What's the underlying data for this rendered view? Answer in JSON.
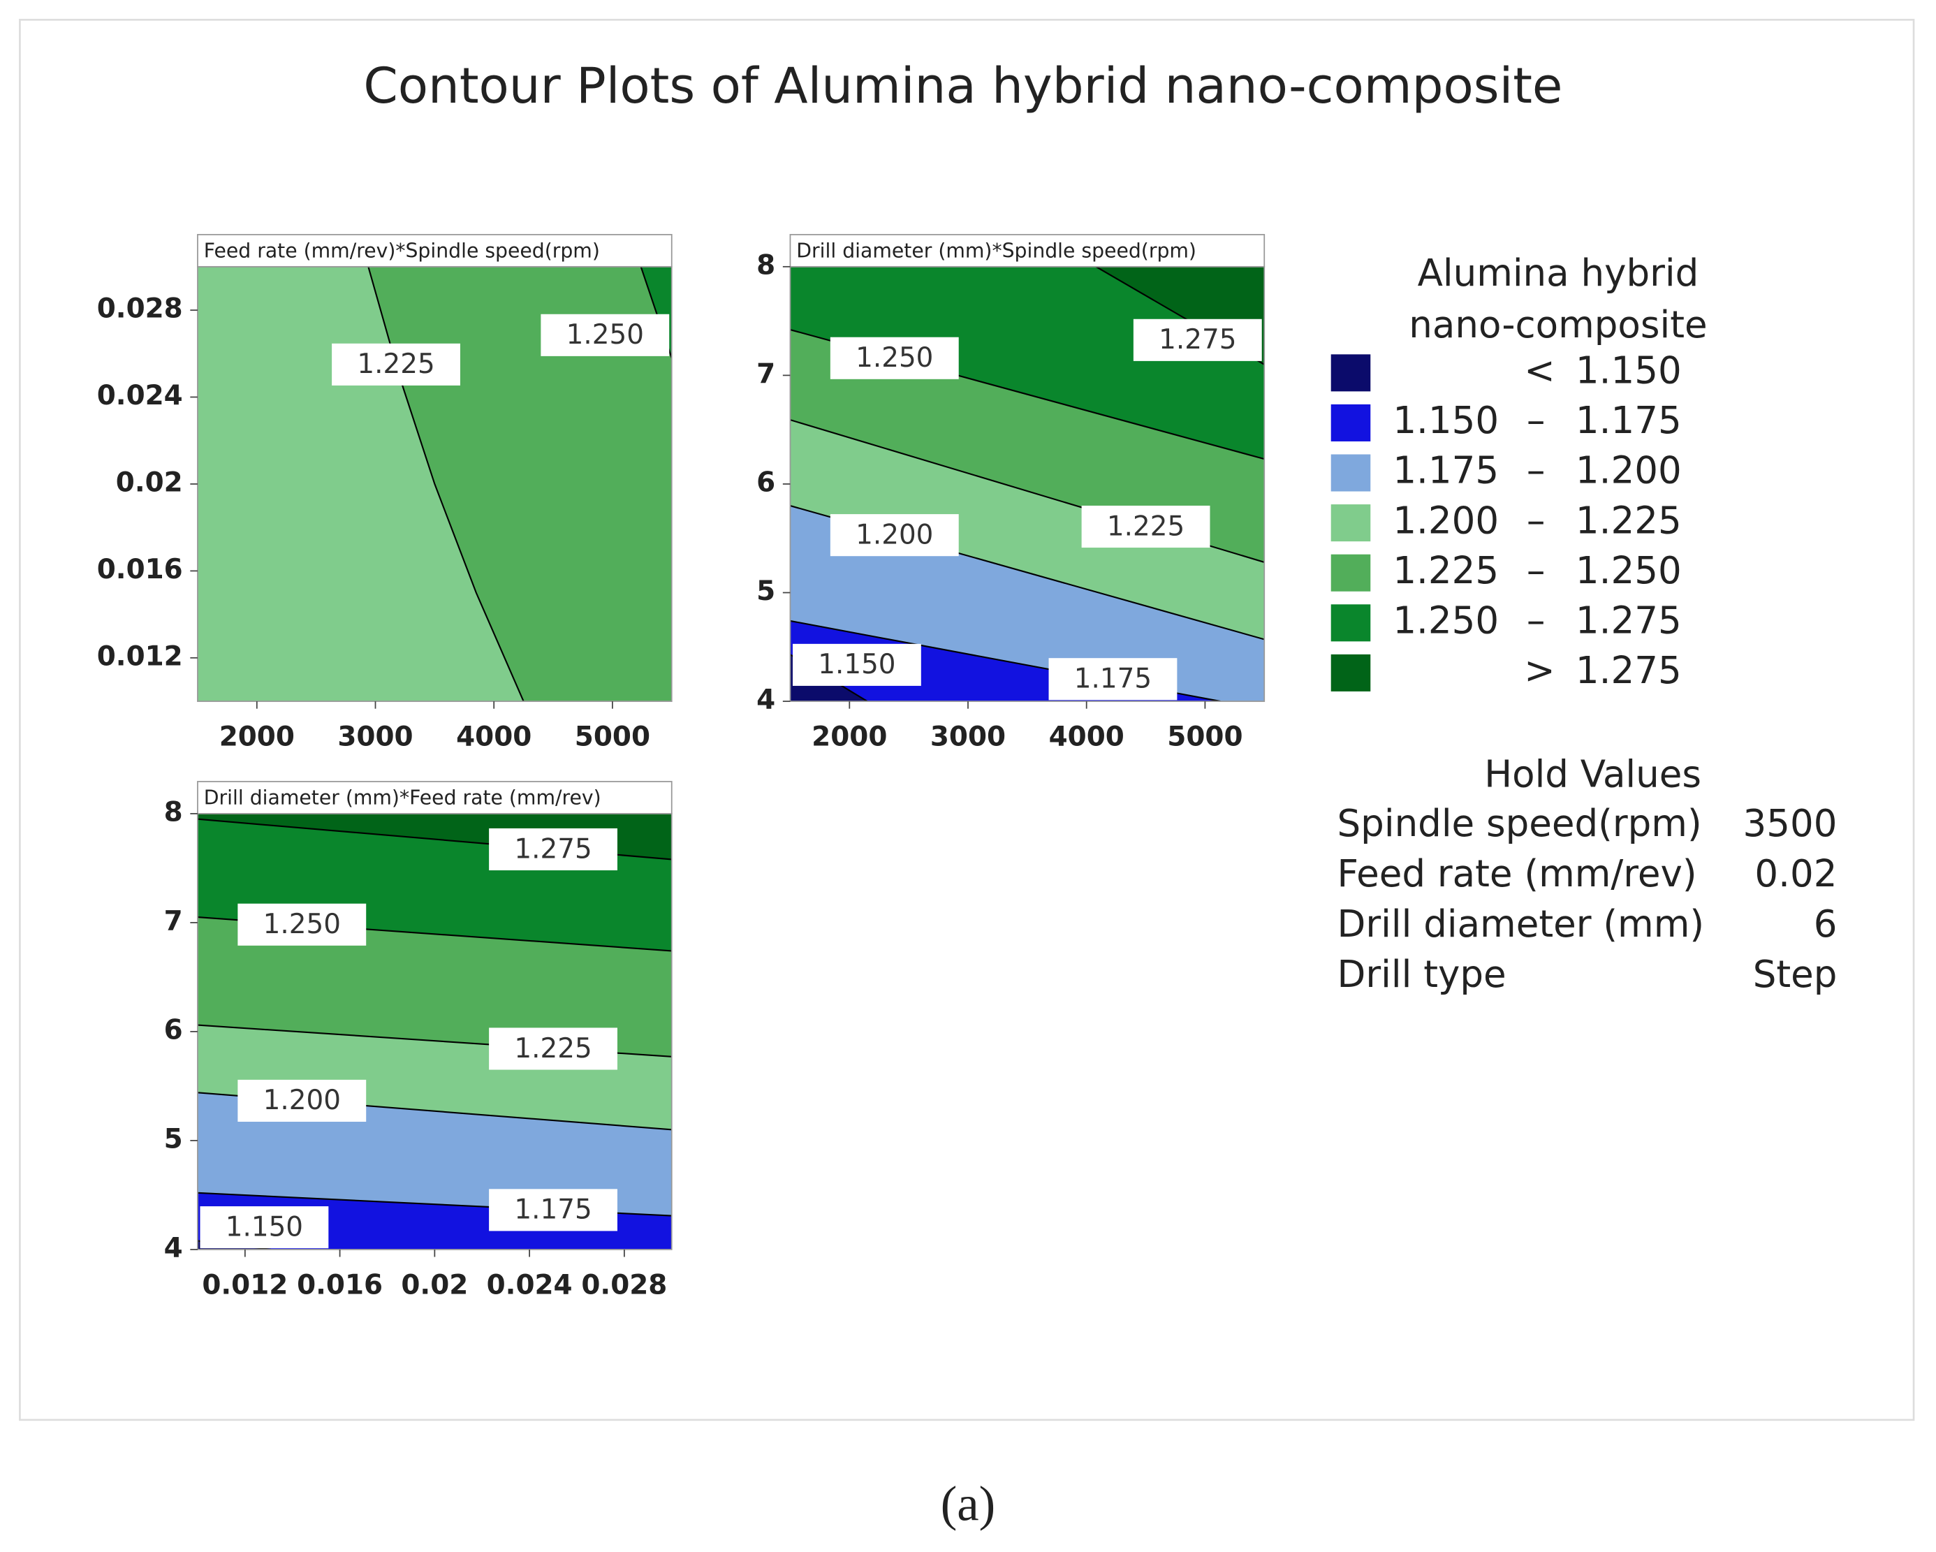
{
  "title": "Contour Plots of Alumina hybrid nano-composite",
  "caption": "(a)",
  "legend": {
    "title": [
      "Alumina hybrid",
      "nano-composite"
    ],
    "lt": "<",
    "gt": ">",
    "dash": "–",
    "bands": [
      {
        "color": "#0b0b6b",
        "min": null,
        "max": {
          "value": 1.15,
          "label": "1.150"
        }
      },
      {
        "color": "#1212e0",
        "min": {
          "value": 1.15,
          "label": "1.150"
        },
        "max": {
          "value": 1.175,
          "label": "1.175"
        }
      },
      {
        "color": "#7fa8dd",
        "min": {
          "value": 1.175,
          "label": "1.175"
        },
        "max": {
          "value": 1.2,
          "label": "1.200"
        }
      },
      {
        "color": "#80cc8c",
        "min": {
          "value": 1.2,
          "label": "1.200"
        },
        "max": {
          "value": 1.225,
          "label": "1.225"
        }
      },
      {
        "color": "#52ae5a",
        "min": {
          "value": 1.225,
          "label": "1.225"
        },
        "max": {
          "value": 1.25,
          "label": "1.250"
        }
      },
      {
        "color": "#0a862c",
        "min": {
          "value": 1.25,
          "label": "1.250"
        },
        "max": {
          "value": 1.275,
          "label": "1.275"
        }
      },
      {
        "color": "#016418",
        "min": {
          "value": 1.275,
          "label": "1.275"
        },
        "max": null
      }
    ]
  },
  "hold_values": {
    "title": "Hold Values",
    "rows": [
      [
        "Spindle speed(rpm)",
        3500
      ],
      [
        "Feed rate (mm/rev)",
        0.02
      ],
      [
        "Drill diameter (mm)",
        6
      ],
      [
        "Drill type",
        "Step"
      ]
    ]
  },
  "chart_data": [
    {
      "type": "contour",
      "title": "Feed rate (mm/rev)*Spindle speed(rpm)",
      "xlim": [
        1500,
        5500
      ],
      "ylim": [
        0.01,
        0.03
      ],
      "xticks": [
        2000,
        3000,
        4000,
        5000
      ],
      "yticks": [
        0.012,
        0.016,
        0.02,
        0.024,
        0.028
      ],
      "contours": [
        {
          "level": {
            "value": 1.225,
            "label": "1.225"
          },
          "x": [
            2940,
            3200,
            3500,
            3850,
            4250
          ],
          "y": [
            0.03,
            0.025,
            0.02,
            0.015,
            0.01
          ]
        },
        {
          "level": {
            "value": 1.25,
            "label": "1.250"
          },
          "x": [
            5240,
            5500
          ],
          "y": [
            0.03,
            0.0258
          ]
        }
      ]
    },
    {
      "type": "contour",
      "title": "Drill diameter (mm)*Spindle speed(rpm)",
      "xlim": [
        1500,
        5500
      ],
      "ylim": [
        4,
        8
      ],
      "xticks": [
        2000,
        3000,
        4000,
        5000
      ],
      "yticks": [
        4,
        5,
        6,
        7,
        8
      ],
      "contours": [
        {
          "level": {
            "value": 1.15,
            "label": "1.150"
          },
          "x": [
            1500,
            2150
          ],
          "y": [
            4.43,
            4
          ]
        },
        {
          "level": {
            "value": 1.175,
            "label": "1.175"
          },
          "x": [
            1500,
            5130
          ],
          "y": [
            4.74,
            4
          ]
        },
        {
          "level": {
            "value": 1.2,
            "label": "1.200"
          },
          "x": [
            1500,
            5500
          ],
          "y": [
            5.8,
            4.57
          ]
        },
        {
          "level": {
            "value": 1.225,
            "label": "1.225"
          },
          "x": [
            1500,
            5500
          ],
          "y": [
            6.59,
            5.28
          ]
        },
        {
          "level": {
            "value": 1.25,
            "label": "1.250"
          },
          "x": [
            1500,
            5500
          ],
          "y": [
            7.42,
            6.23
          ]
        },
        {
          "level": {
            "value": 1.275,
            "label": "1.275"
          },
          "x": [
            4080,
            5500
          ],
          "y": [
            8,
            7.1
          ]
        }
      ]
    },
    {
      "type": "contour",
      "title": "Drill diameter (mm)*Feed rate (mm/rev)",
      "xlim": [
        0.01,
        0.03
      ],
      "ylim": [
        4,
        8
      ],
      "xticks": [
        0.012,
        0.016,
        0.02,
        0.024,
        0.028
      ],
      "yticks": [
        4,
        5,
        6,
        7,
        8
      ],
      "contours": [
        {
          "level": {
            "value": 1.15,
            "label": "1.150"
          },
          "x": [
            0.01,
            0.0131
          ],
          "y": [
            4.08,
            4
          ]
        },
        {
          "level": {
            "value": 1.175,
            "label": "1.175"
          },
          "x": [
            0.01,
            0.03
          ],
          "y": [
            4.52,
            4.31
          ]
        },
        {
          "level": {
            "value": 1.2,
            "label": "1.200"
          },
          "x": [
            0.01,
            0.03
          ],
          "y": [
            5.44,
            5.1
          ]
        },
        {
          "level": {
            "value": 1.225,
            "label": "1.225"
          },
          "x": [
            0.01,
            0.03
          ],
          "y": [
            6.06,
            5.77
          ]
        },
        {
          "level": {
            "value": 1.25,
            "label": "1.250"
          },
          "x": [
            0.01,
            0.03
          ],
          "y": [
            7.05,
            6.74
          ]
        },
        {
          "level": {
            "value": 1.275,
            "label": "1.275"
          },
          "x": [
            0.01,
            0.03
          ],
          "y": [
            7.95,
            7.58
          ]
        }
      ]
    }
  ]
}
